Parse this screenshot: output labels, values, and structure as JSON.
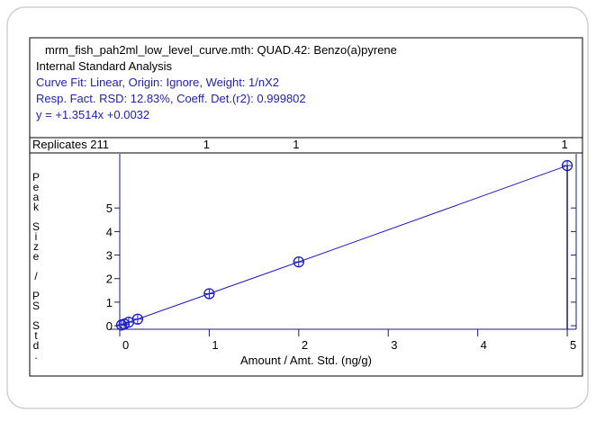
{
  "header": [
    "mrm_fish_pah2ml_low_level_curve.mth:  QUAD.42:  Benzo(a)pyrene",
    "Internal Standard Analysis",
    "Curve Fit: Linear, Origin: Ignore, Weight: 1/nX2",
    "Resp. Fact. RSD:  12.83%,    Coeff. Det.(r2):  0.999802",
    "y =  +1.3514x +0.0032"
  ],
  "replicates": {
    "title": "Replicates 211",
    "x": [
      1,
      2,
      5
    ],
    "labels": [
      "1",
      "1",
      "1"
    ]
  },
  "chart_data": {
    "type": "line",
    "x_label": "Amount / Amt. Std. (ng/g)",
    "y_label": "Peak Size / PS Std.",
    "series": [
      {
        "color": "#1a1acc",
        "x": [
          0.02,
          0.05,
          0.1,
          0.2,
          1,
          2,
          5
        ],
        "values": [
          0.03,
          0.07,
          0.15,
          0.28,
          1.36,
          2.71,
          6.8
        ]
      }
    ],
    "xlim": [
      0,
      5.1
    ],
    "ylim": [
      -0.15,
      7.3
    ],
    "xticks": [
      0,
      1,
      2,
      3,
      4,
      5
    ],
    "yticks": [
      0,
      1,
      2,
      3,
      4,
      5
    ]
  }
}
